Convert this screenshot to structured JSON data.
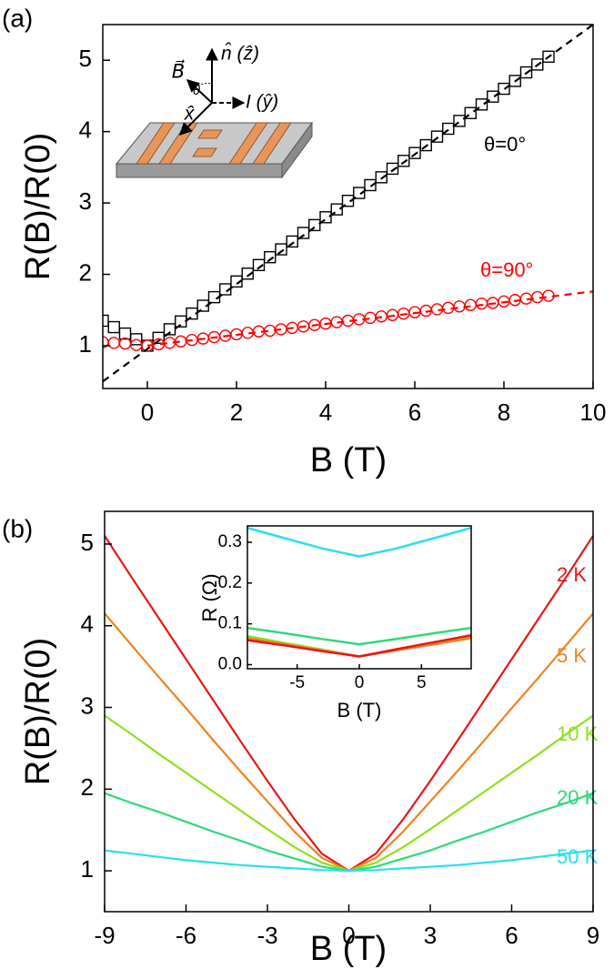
{
  "chart_data": [
    {
      "type": "scatter",
      "panel_label": "(a)",
      "x_label": "B (T)",
      "y_label": "R(B)/R(0)",
      "xlim": [
        -1,
        10
      ],
      "xticks": [
        0,
        2,
        4,
        6,
        8,
        10
      ],
      "ylim": [
        0.4,
        5.5
      ],
      "yticks": [
        1,
        2,
        3,
        4,
        5
      ],
      "annotations": [
        "n̂ (ẑ)",
        "B⃗",
        "θ",
        "I (ŷ)",
        "x̂"
      ],
      "x": [
        -1,
        -0.75,
        -0.5,
        -0.25,
        0,
        0.25,
        0.5,
        0.75,
        1,
        1.25,
        1.5,
        1.75,
        2,
        2.25,
        2.5,
        2.75,
        3,
        3.25,
        3.5,
        3.75,
        4,
        4.25,
        4.5,
        4.75,
        5,
        5.25,
        5.5,
        5.75,
        6,
        6.25,
        6.5,
        6.75,
        7,
        7.25,
        7.5,
        7.75,
        8,
        8.25,
        8.5,
        8.75,
        9
      ],
      "series": [
        {
          "name": "θ=0°",
          "color": "#000000",
          "marker": "square",
          "values": [
            1.35,
            1.26,
            1.17,
            1.09,
            1.0,
            1.11,
            1.23,
            1.34,
            1.45,
            1.56,
            1.68,
            1.79,
            1.9,
            2.01,
            2.13,
            2.24,
            2.35,
            2.46,
            2.58,
            2.69,
            2.8,
            2.91,
            3.03,
            3.14,
            3.25,
            3.36,
            3.48,
            3.59,
            3.7,
            3.81,
            3.93,
            4.04,
            4.15,
            4.26,
            4.38,
            4.49,
            4.6,
            4.71,
            4.83,
            4.94,
            5.05
          ]
        },
        {
          "name": "θ=90°",
          "color": "#ff0000",
          "marker": "circle",
          "values": [
            1.05,
            1.04,
            1.03,
            1.01,
            1.0,
            1.02,
            1.04,
            1.06,
            1.08,
            1.1,
            1.12,
            1.14,
            1.16,
            1.18,
            1.2,
            1.21,
            1.23,
            1.25,
            1.27,
            1.29,
            1.31,
            1.33,
            1.35,
            1.37,
            1.39,
            1.41,
            1.43,
            1.45,
            1.47,
            1.49,
            1.51,
            1.53,
            1.55,
            1.57,
            1.59,
            1.6,
            1.62,
            1.64,
            1.66,
            1.68,
            1.7
          ]
        },
        {
          "color": "#000000",
          "dash": true,
          "x": [
            -1,
            10
          ],
          "values": [
            0.5,
            5.5
          ]
        },
        {
          "color": "#ff0000",
          "dash": true,
          "x": [
            0,
            10
          ],
          "values": [
            1.0,
            1.76
          ]
        }
      ]
    },
    {
      "type": "line",
      "panel_label": "(b)",
      "x_label": "B (T)",
      "y_label": "R(B)/R(0)",
      "xlim": [
        -9,
        9
      ],
      "xticks": [
        -9,
        -6,
        -3,
        0,
        3,
        6,
        9
      ],
      "ylim": [
        0.5,
        5.4
      ],
      "yticks": [
        1,
        2,
        3,
        4,
        5
      ],
      "x": [
        -9,
        -8,
        -7,
        -6,
        -5,
        -4,
        -3,
        -2,
        -1,
        0,
        1,
        2,
        3,
        4,
        5,
        6,
        7,
        8,
        9
      ],
      "series": [
        {
          "name": "2 K",
          "color": "#e8161b",
          "values": [
            5.1,
            4.59,
            4.09,
            3.59,
            3.09,
            2.59,
            2.1,
            1.63,
            1.21,
            1,
            1.21,
            1.63,
            2.1,
            2.59,
            3.09,
            3.59,
            4.09,
            4.59,
            5.1
          ]
        },
        {
          "name": "5 K",
          "color": "#f0821e",
          "values": [
            4.15,
            3.76,
            3.37,
            2.99,
            2.6,
            2.22,
            1.85,
            1.48,
            1.16,
            1,
            1.16,
            1.48,
            1.85,
            2.22,
            2.6,
            2.99,
            3.37,
            3.76,
            4.15
          ]
        },
        {
          "name": "10 K",
          "color": "#8ee21e",
          "values": [
            2.9,
            2.67,
            2.43,
            2.2,
            1.97,
            1.74,
            1.51,
            1.29,
            1.1,
            1,
            1.1,
            1.29,
            1.51,
            1.74,
            1.97,
            2.2,
            2.43,
            2.67,
            2.9
          ]
        },
        {
          "name": "20 K",
          "color": "#2fd97a",
          "values": [
            1.95,
            1.83,
            1.72,
            1.6,
            1.48,
            1.37,
            1.25,
            1.15,
            1.05,
            1,
            1.05,
            1.15,
            1.25,
            1.37,
            1.48,
            1.6,
            1.72,
            1.83,
            1.95
          ]
        },
        {
          "name": "50 K",
          "color": "#28e0f0",
          "values": [
            1.25,
            1.21,
            1.17,
            1.13,
            1.1,
            1.07,
            1.05,
            1.03,
            1.01,
            1,
            1.01,
            1.03,
            1.05,
            1.07,
            1.1,
            1.13,
            1.17,
            1.21,
            1.25
          ]
        }
      ]
    },
    {
      "type": "line",
      "x_label": "B (T)",
      "y_label": "R (Ω)",
      "xlim": [
        -9,
        9
      ],
      "xticks": [
        -5,
        0,
        5
      ],
      "ylim": [
        -0.01,
        0.34
      ],
      "yticks": [
        {
          "value": 0,
          "label": "0.0"
        },
        {
          "value": 0.1,
          "label": "0.1"
        },
        {
          "value": 0.2,
          "label": "0.2"
        },
        {
          "value": 0.3,
          "label": "0.3"
        }
      ],
      "x": [
        -9,
        -6,
        -3,
        0,
        3,
        6,
        9
      ],
      "series": [
        {
          "color": "#28e0f0",
          "values": [
            0.335,
            0.31,
            0.285,
            0.265,
            0.285,
            0.31,
            0.335
          ]
        },
        {
          "color": "#2fd97a",
          "values": [
            0.09,
            0.077,
            0.063,
            0.05,
            0.063,
            0.077,
            0.09
          ]
        },
        {
          "color": "#8ee21e",
          "values": [
            0.07,
            0.053,
            0.037,
            0.02,
            0.037,
            0.053,
            0.07
          ]
        },
        {
          "color": "#f0821e",
          "values": [
            0.065,
            0.05,
            0.035,
            0.02,
            0.035,
            0.05,
            0.065
          ]
        },
        {
          "color": "#e8161b",
          "values": [
            0.06,
            0.047,
            0.033,
            0.02,
            0.038,
            0.055,
            0.072
          ]
        }
      ]
    }
  ]
}
